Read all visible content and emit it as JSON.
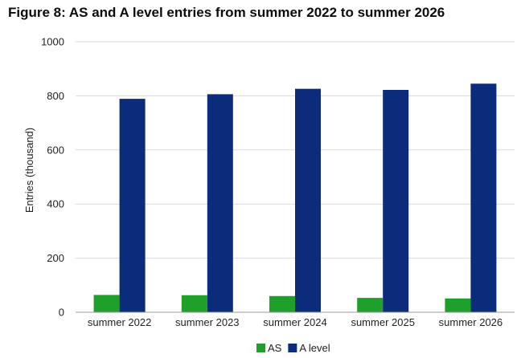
{
  "chart_data": {
    "type": "bar",
    "title": "Figure 8: AS and A level entries from summer 2022 to summer 2026",
    "ylabel": "Entries (thousand)",
    "xlabel": "",
    "ylim": [
      0,
      1000
    ],
    "yticks": [
      0,
      200,
      400,
      600,
      800,
      1000
    ],
    "grid": true,
    "legend_position": "bottom",
    "categories": [
      "summer 2022",
      "summer 2023",
      "summer 2024",
      "summer 2025",
      "summer 2026"
    ],
    "series": [
      {
        "name": "AS",
        "color": "#1fa02a",
        "values": [
          64,
          63,
          60,
          53,
          51
        ]
      },
      {
        "name": "A level",
        "color": "#0b2c7a",
        "values": [
          789,
          806,
          826,
          822,
          845
        ]
      }
    ]
  }
}
